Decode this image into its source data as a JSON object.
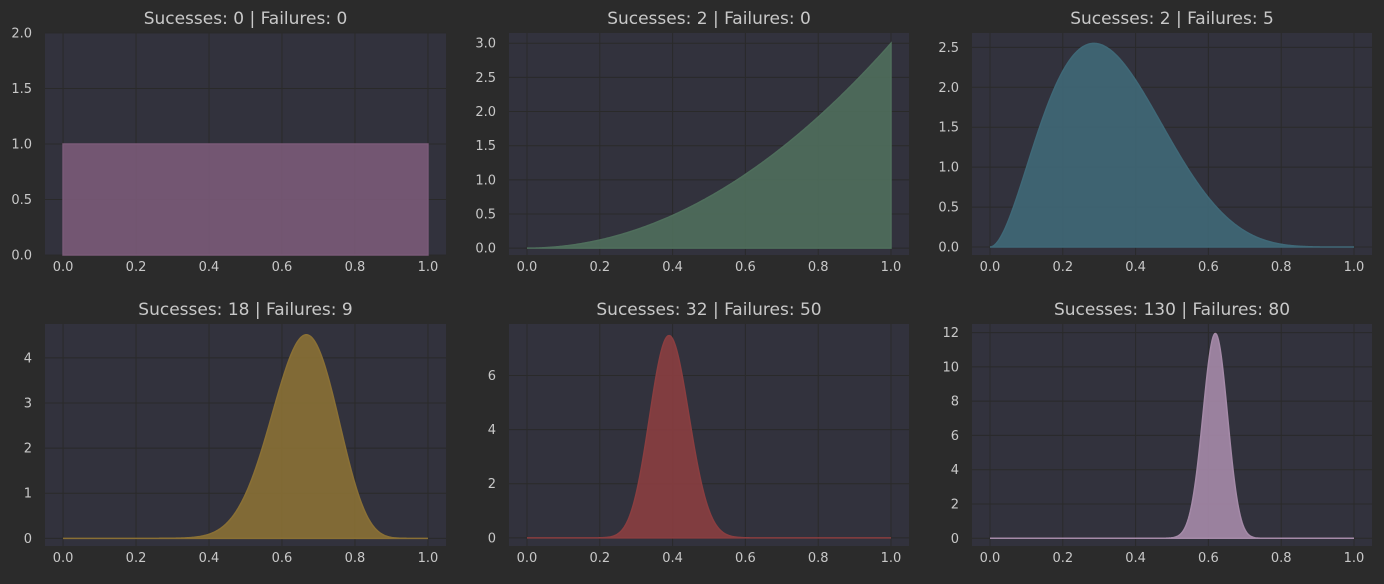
{
  "figure": {
    "background": "#2b2b2b",
    "axes_background": "#32323d",
    "grid_color": "#2a2a2a",
    "text_color": "#c8c8c8"
  },
  "chart_data": [
    {
      "type": "area",
      "title": "Sucesses: 0 | Failures: 0",
      "successes": 0,
      "failures": 0,
      "alpha": 1,
      "beta": 1,
      "color": "#7a5a78",
      "xlim": [
        0,
        1
      ],
      "ylim": [
        0,
        2.0
      ],
      "xticks": [
        "0.0",
        "0.2",
        "0.4",
        "0.6",
        "0.8",
        "1.0"
      ],
      "yticks": [
        "0.0",
        "0.5",
        "1.0",
        "1.5",
        "2.0"
      ],
      "ytick_values": [
        0,
        0.5,
        1,
        1.5,
        2
      ],
      "grid": true
    },
    {
      "type": "area",
      "title": "Sucesses: 2 | Failures: 0",
      "successes": 2,
      "failures": 0,
      "alpha": 3,
      "beta": 1,
      "color": "#4f6e5c",
      "xlim": [
        0,
        1
      ],
      "ylim": [
        -0.1,
        3.15
      ],
      "xticks": [
        "0.0",
        "0.2",
        "0.4",
        "0.6",
        "0.8",
        "1.0"
      ],
      "yticks": [
        "0.0",
        "0.5",
        "1.0",
        "1.5",
        "2.0",
        "2.5",
        "3.0"
      ],
      "ytick_values": [
        0,
        0.5,
        1,
        1.5,
        2,
        2.5,
        3
      ],
      "grid": true
    },
    {
      "type": "area",
      "title": "Sucesses: 2 | Failures: 5",
      "successes": 2,
      "failures": 5,
      "alpha": 3,
      "beta": 6,
      "color": "#3f6877",
      "xlim": [
        0,
        1
      ],
      "ylim": [
        -0.1,
        2.68
      ],
      "xticks": [
        "0.0",
        "0.2",
        "0.4",
        "0.6",
        "0.8",
        "1.0"
      ],
      "yticks": [
        "0.0",
        "0.5",
        "1.0",
        "1.5",
        "2.0",
        "2.5"
      ],
      "ytick_values": [
        0,
        0.5,
        1,
        1.5,
        2,
        2.5
      ],
      "grid": true
    },
    {
      "type": "area",
      "title": "Sucesses: 18 | Failures: 9",
      "successes": 18,
      "failures": 9,
      "alpha": 19,
      "beta": 10,
      "color": "#8a7035",
      "xlim": [
        0,
        1
      ],
      "ylim": [
        -0.17,
        4.75
      ],
      "xticks": [
        "0.0",
        "0.2",
        "0.4",
        "0.6",
        "0.8",
        "1.0"
      ],
      "yticks": [
        "0",
        "1",
        "2",
        "3",
        "4"
      ],
      "ytick_values": [
        0,
        1,
        2,
        3,
        4
      ],
      "grid": true
    },
    {
      "type": "area",
      "title": "Sucesses: 32 | Failures: 50",
      "successes": 32,
      "failures": 50,
      "alpha": 33,
      "beta": 51,
      "color": "#8a3e40",
      "xlim": [
        0,
        1
      ],
      "ylim": [
        -0.3,
        7.9
      ],
      "xticks": [
        "0.0",
        "0.2",
        "0.4",
        "0.6",
        "0.8",
        "1.0"
      ],
      "yticks": [
        "0",
        "2",
        "4",
        "6"
      ],
      "ytick_values": [
        0,
        2,
        4,
        6
      ],
      "grid": true
    },
    {
      "type": "area",
      "title": "Sucesses: 130 | Failures: 80",
      "successes": 130,
      "failures": 80,
      "alpha": 131,
      "beta": 81,
      "color": "#a58aa8",
      "xlim": [
        0,
        1
      ],
      "ylim": [
        -0.45,
        12.5
      ],
      "xticks": [
        "0.0",
        "0.2",
        "0.4",
        "0.6",
        "0.8",
        "1.0"
      ],
      "yticks": [
        "0",
        "2",
        "4",
        "6",
        "8",
        "10",
        "12"
      ],
      "ytick_values": [
        0,
        2,
        4,
        6,
        8,
        10,
        12
      ],
      "grid": true
    }
  ]
}
